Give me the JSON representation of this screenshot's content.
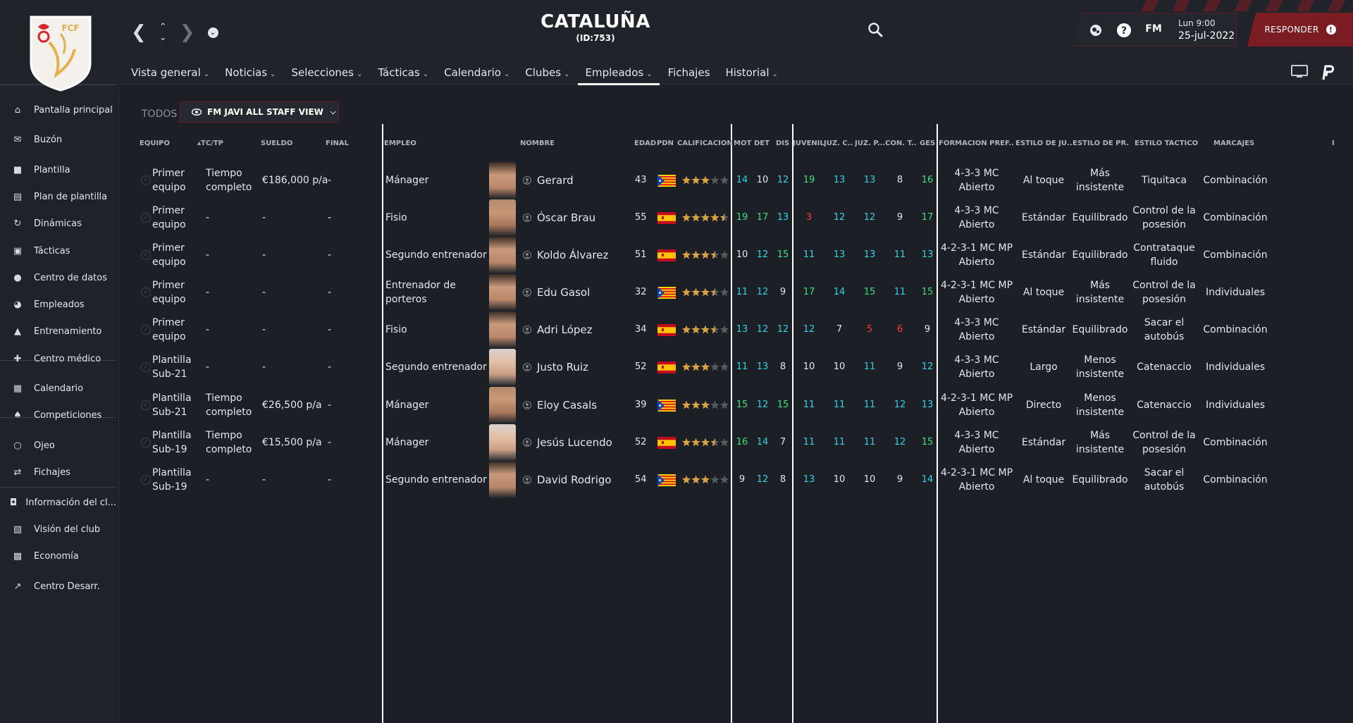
{
  "header": {
    "club_name": "CATALUÑA",
    "club_id": "(ID:753)",
    "crest_text": "FCF",
    "time": "Lun 9:00",
    "date": "25-jul-2022",
    "fm_label": "FM",
    "respond_label": "RESPONDER"
  },
  "tabs": [
    {
      "label": "Vista general",
      "dropdown": true
    },
    {
      "label": "Noticias",
      "dropdown": true
    },
    {
      "label": "Selecciones",
      "dropdown": true
    },
    {
      "label": "Tácticas",
      "dropdown": true
    },
    {
      "label": "Calendario",
      "dropdown": true
    },
    {
      "label": "Clubes",
      "dropdown": true
    },
    {
      "label": "Empleados",
      "dropdown": true,
      "active": true
    },
    {
      "label": "Fichajes",
      "dropdown": false
    },
    {
      "label": "Historial",
      "dropdown": true
    }
  ],
  "sidebar": {
    "items": [
      {
        "label": "Pantalla principal",
        "icon": "home-icon"
      },
      {
        "label": "Buzón",
        "icon": "inbox-icon"
      },
      {
        "label": "Plantilla",
        "icon": "shirt-icon"
      },
      {
        "label": "Plan de plantilla",
        "icon": "clipboard-icon"
      },
      {
        "label": "Dinámicas",
        "icon": "dynamics-icon"
      },
      {
        "label": "Tácticas",
        "icon": "tactics-icon"
      },
      {
        "label": "Centro de datos",
        "icon": "data-icon"
      },
      {
        "label": "Empleados",
        "icon": "staff-icon"
      },
      {
        "label": "Entrenamiento",
        "icon": "training-icon"
      },
      {
        "label": "Centro médico",
        "icon": "medical-icon"
      },
      {
        "label": "Calendario",
        "icon": "calendar-icon"
      },
      {
        "label": "Competiciones",
        "icon": "trophy-icon"
      },
      {
        "label": "Ojeo",
        "icon": "scout-icon"
      },
      {
        "label": "Fichajes",
        "icon": "transfers-icon"
      },
      {
        "label": "Información del cl...",
        "icon": "club-info-icon"
      },
      {
        "label": "Visión del club",
        "icon": "vision-icon"
      },
      {
        "label": "Economía",
        "icon": "finance-icon"
      },
      {
        "label": "Centro Desarr.",
        "icon": "development-icon"
      }
    ]
  },
  "filter": {
    "todos_label": "TODOS",
    "view_label": "FM JAVI ALL STAFF VIEW"
  },
  "columns": {
    "equipo": "EQUIPO",
    "tctp": "TC/TP",
    "sueldo": "SUELDO",
    "final": "FINAL",
    "empleo": "EMPLEO",
    "nombre": "NOMBRE",
    "edad": "EDAD",
    "pdn": "PDN",
    "calif": "CALIFICACIÓN",
    "mot": "MOT",
    "det": "DET",
    "dis": "DIS",
    "juvenil": "JUVENIL",
    "juzc": "JUZ. C...",
    "juzp": "JUZ. P...",
    "cont": "CON. T...",
    "ges": "GES",
    "formacion": "FORMACIÓN PREF...",
    "estilo_ju": "ESTILO DE JU...",
    "estilo_pr": "ESTILO DE PR...",
    "estilo_tac": "ESTILO TÁCTICO",
    "marcajes": "MARCAJES",
    "extra": "I"
  },
  "rows": [
    {
      "equipo": [
        "Primer",
        "equipo"
      ],
      "tctp": [
        "Tiempo",
        "completo"
      ],
      "sueldo": "€186,000 p/a",
      "final": "-",
      "empleo": [
        "Mánager"
      ],
      "nombre": "Gerard",
      "edad": "43",
      "flag": "catalonia",
      "stars": 3,
      "mot": [
        "14",
        "cyan"
      ],
      "det": [
        "10",
        "white"
      ],
      "dis": [
        "12",
        "cyan"
      ],
      "juv": [
        "19",
        "green"
      ],
      "juzc": [
        "13",
        "cyan"
      ],
      "juzp": [
        "13",
        "cyan"
      ],
      "cont": [
        "8",
        "white"
      ],
      "ges": [
        "16",
        "green"
      ],
      "formacion": [
        "4-3-3 MC",
        "Abierto"
      ],
      "estilo_ju": [
        "Al toque"
      ],
      "estilo_pr": [
        "Más",
        "insistente"
      ],
      "estilo_tac": [
        "Tiquitaca"
      ],
      "marcajes": "Combinación",
      "face": "dark"
    },
    {
      "equipo": [
        "Primer",
        "equipo"
      ],
      "tctp": [
        "-"
      ],
      "sueldo": "-",
      "final": "-",
      "empleo": [
        "Fisio"
      ],
      "nombre": "Óscar Brau",
      "edad": "55",
      "flag": "spain",
      "stars": 4.5,
      "mot": [
        "19",
        "green"
      ],
      "det": [
        "17",
        "green"
      ],
      "dis": [
        "13",
        "cyan"
      ],
      "juv": [
        "3",
        "red"
      ],
      "juzc": [
        "12",
        "cyan"
      ],
      "juzp": [
        "12",
        "cyan"
      ],
      "cont": [
        "9",
        "white"
      ],
      "ges": [
        "17",
        "green"
      ],
      "formacion": [
        "4-3-3 MC",
        "Abierto"
      ],
      "estilo_ju": [
        "Estándar"
      ],
      "estilo_pr": [
        "Equilibrado"
      ],
      "estilo_tac": [
        "Control de la",
        "posesión"
      ],
      "marcajes": "Combinación",
      "face": "bald"
    },
    {
      "equipo": [
        "Primer",
        "equipo"
      ],
      "tctp": [
        "-"
      ],
      "sueldo": "-",
      "final": "-",
      "empleo": [
        "Segundo entrenador"
      ],
      "nombre": "Koldo Álvarez",
      "edad": "51",
      "flag": "spain",
      "stars": 3.5,
      "mot": [
        "10",
        "white"
      ],
      "det": [
        "12",
        "cyan"
      ],
      "dis": [
        "15",
        "green"
      ],
      "juv": [
        "11",
        "cyan"
      ],
      "juzc": [
        "13",
        "cyan"
      ],
      "juzp": [
        "13",
        "cyan"
      ],
      "cont": [
        "11",
        "cyan"
      ],
      "ges": [
        "13",
        "cyan"
      ],
      "formacion": [
        "4-2-3-1 MC MP",
        "Abierto"
      ],
      "estilo_ju": [
        "Estándar"
      ],
      "estilo_pr": [
        "Equilibrado"
      ],
      "estilo_tac": [
        "Contrataque",
        "fluido"
      ],
      "marcajes": "Combinación",
      "face": "dark"
    },
    {
      "equipo": [
        "Primer",
        "equipo"
      ],
      "tctp": [
        "-"
      ],
      "sueldo": "-",
      "final": "-",
      "empleo": [
        "Entrenador de",
        "porteros"
      ],
      "nombre": "Edu Gasol",
      "edad": "32",
      "flag": "catalonia",
      "stars": 3.5,
      "mot": [
        "11",
        "cyan"
      ],
      "det": [
        "12",
        "cyan"
      ],
      "dis": [
        "9",
        "white"
      ],
      "juv": [
        "17",
        "green"
      ],
      "juzc": [
        "14",
        "cyan"
      ],
      "juzp": [
        "15",
        "green"
      ],
      "cont": [
        "11",
        "cyan"
      ],
      "ges": [
        "15",
        "green"
      ],
      "formacion": [
        "4-2-3-1 MC MP",
        "Abierto"
      ],
      "estilo_ju": [
        "Al toque"
      ],
      "estilo_pr": [
        "Más",
        "insistente"
      ],
      "estilo_tac": [
        "Control de la",
        "posesión"
      ],
      "marcajes": "Individuales",
      "face": "dark"
    },
    {
      "equipo": [
        "Primer",
        "equipo"
      ],
      "tctp": [
        "-"
      ],
      "sueldo": "-",
      "final": "-",
      "empleo": [
        "Fisio"
      ],
      "nombre": "Adri López",
      "edad": "34",
      "flag": "spain",
      "stars": 3.5,
      "mot": [
        "13",
        "cyan"
      ],
      "det": [
        "12",
        "cyan"
      ],
      "dis": [
        "12",
        "cyan"
      ],
      "juv": [
        "12",
        "cyan"
      ],
      "juzc": [
        "7",
        "white"
      ],
      "juzp": [
        "5",
        "red"
      ],
      "cont": [
        "6",
        "red"
      ],
      "ges": [
        "9",
        "white"
      ],
      "formacion": [
        "4-3-3 MC",
        "Abierto"
      ],
      "estilo_ju": [
        "Estándar"
      ],
      "estilo_pr": [
        "Equilibrado"
      ],
      "estilo_tac": [
        "Sacar el",
        "autobús"
      ],
      "marcajes": "Combinación",
      "face": "dark"
    },
    {
      "equipo": [
        "Plantilla",
        "Sub-21"
      ],
      "tctp": [
        "-"
      ],
      "sueldo": "-",
      "final": "-",
      "empleo": [
        "Segundo entrenador"
      ],
      "nombre": "Justo Ruiz",
      "edad": "52",
      "flag": "spain",
      "stars": 3,
      "mot": [
        "11",
        "cyan"
      ],
      "det": [
        "13",
        "cyan"
      ],
      "dis": [
        "8",
        "white"
      ],
      "juv": [
        "10",
        "white"
      ],
      "juzc": [
        "10",
        "white"
      ],
      "juzp": [
        "11",
        "cyan"
      ],
      "cont": [
        "9",
        "white"
      ],
      "ges": [
        "12",
        "cyan"
      ],
      "formacion": [
        "4-3-3 MC",
        "Abierto"
      ],
      "estilo_ju": [
        "Largo"
      ],
      "estilo_pr": [
        "Menos",
        "insistente"
      ],
      "estilo_tac": [
        "Catenaccio"
      ],
      "marcajes": "Individuales",
      "face": "light"
    },
    {
      "equipo": [
        "Plantilla",
        "Sub-21"
      ],
      "tctp": [
        "Tiempo",
        "completo"
      ],
      "sueldo": "€26,500 p/a",
      "final": "-",
      "empleo": [
        "Mánager"
      ],
      "nombre": "Eloy Casals",
      "edad": "39",
      "flag": "catalonia",
      "stars": 3,
      "mot": [
        "15",
        "green"
      ],
      "det": [
        "12",
        "cyan"
      ],
      "dis": [
        "15",
        "green"
      ],
      "juv": [
        "11",
        "cyan"
      ],
      "juzc": [
        "11",
        "cyan"
      ],
      "juzp": [
        "11",
        "cyan"
      ],
      "cont": [
        "12",
        "cyan"
      ],
      "ges": [
        "13",
        "cyan"
      ],
      "formacion": [
        "4-2-3-1 MC MP",
        "Abierto"
      ],
      "estilo_ju": [
        "Directo"
      ],
      "estilo_pr": [
        "Menos",
        "insistente"
      ],
      "estilo_tac": [
        "Catenaccio"
      ],
      "marcajes": "Individuales",
      "face": "bald"
    },
    {
      "equipo": [
        "Plantilla",
        "Sub-19"
      ],
      "tctp": [
        "Tiempo",
        "completo"
      ],
      "sueldo": "€15,500 p/a",
      "final": "-",
      "empleo": [
        "Mánager"
      ],
      "nombre": "Jesús Lucendo",
      "edad": "52",
      "flag": "spain",
      "stars": 3.5,
      "mot": [
        "16",
        "green"
      ],
      "det": [
        "14",
        "cyan"
      ],
      "dis": [
        "7",
        "white"
      ],
      "juv": [
        "11",
        "cyan"
      ],
      "juzc": [
        "11",
        "cyan"
      ],
      "juzp": [
        "11",
        "cyan"
      ],
      "cont": [
        "12",
        "cyan"
      ],
      "ges": [
        "15",
        "green"
      ],
      "formacion": [
        "4-3-3 MC",
        "Abierto"
      ],
      "estilo_ju": [
        "Estándar"
      ],
      "estilo_pr": [
        "Más",
        "insistente"
      ],
      "estilo_tac": [
        "Control de la",
        "posesión"
      ],
      "marcajes": "Combinación",
      "face": "light"
    },
    {
      "equipo": [
        "Plantilla",
        "Sub-19"
      ],
      "tctp": [
        "-"
      ],
      "sueldo": "-",
      "final": "-",
      "empleo": [
        "Segundo entrenador"
      ],
      "nombre": "David Rodrigo",
      "edad": "54",
      "flag": "catalonia",
      "stars": 3,
      "mot": [
        "9",
        "white"
      ],
      "det": [
        "12",
        "cyan"
      ],
      "dis": [
        "8",
        "white"
      ],
      "juv": [
        "13",
        "cyan"
      ],
      "juzc": [
        "10",
        "white"
      ],
      "juzp": [
        "10",
        "white"
      ],
      "cont": [
        "9",
        "white"
      ],
      "ges": [
        "14",
        "cyan"
      ],
      "formacion": [
        "4-2-3-1 MC MP",
        "Abierto"
      ],
      "estilo_ju": [
        "Al toque"
      ],
      "estilo_pr": [
        "Equilibrado"
      ],
      "estilo_tac": [
        "Sacar el",
        "autobús"
      ],
      "marcajes": "Combinación",
      "face": "dark"
    }
  ],
  "colors": {
    "accent": "#7a1c22",
    "good": "#3ee07a",
    "mid": "#2fd3e8",
    "bad": "#ff3b3b",
    "star": "#d9a441"
  }
}
